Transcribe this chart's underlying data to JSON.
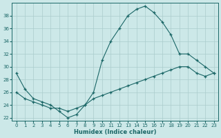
{
  "title": "",
  "xlabel": "Humidex (Indice chaleur)",
  "ylabel": "",
  "bg_color": "#cce8e8",
  "line_color": "#1a6666",
  "grid_color": "#aacccc",
  "xlim": [
    -0.5,
    23.5
  ],
  "ylim": [
    21.5,
    40
  ],
  "xticks": [
    0,
    1,
    2,
    3,
    4,
    5,
    6,
    7,
    8,
    9,
    10,
    11,
    12,
    13,
    14,
    15,
    16,
    17,
    18,
    19,
    20,
    21,
    22,
    23
  ],
  "yticks": [
    22,
    24,
    26,
    28,
    30,
    32,
    34,
    36,
    38
  ],
  "curve1_x": [
    0,
    1,
    2,
    3,
    4,
    5,
    6,
    7,
    8,
    9,
    10,
    11,
    12,
    13,
    14,
    15,
    16,
    17,
    18,
    19,
    20,
    21,
    22,
    23
  ],
  "curve1_y": [
    29,
    26.5,
    25,
    24.5,
    24,
    23,
    22,
    22.5,
    24,
    26,
    31,
    34,
    36,
    38,
    39,
    39.5,
    38.5,
    37,
    35,
    32,
    32,
    31,
    30,
    29
  ],
  "curve2_x": [
    0,
    1,
    2,
    3,
    4,
    5,
    6,
    7,
    8,
    9,
    10,
    11,
    12,
    13,
    14,
    15,
    16,
    17,
    18,
    19,
    20,
    21,
    22,
    23
  ],
  "curve2_y": [
    26,
    25,
    24.5,
    24,
    23.5,
    23.5,
    23,
    23.5,
    24,
    25,
    25.5,
    26,
    26.5,
    27,
    27.5,
    28,
    28.5,
    29,
    29.5,
    30,
    30,
    29,
    28.5,
    29
  ]
}
